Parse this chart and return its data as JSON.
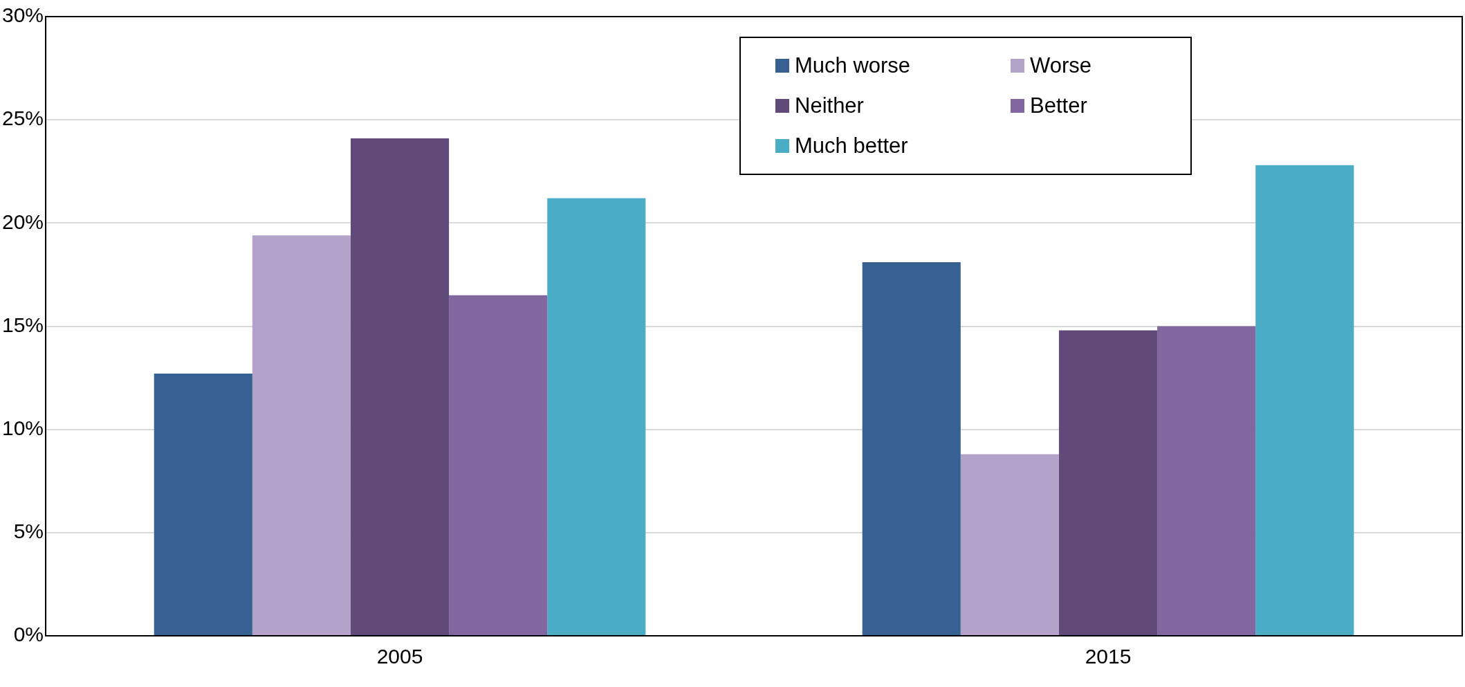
{
  "chart_data": {
    "type": "bar",
    "categories": [
      "2005",
      "2015"
    ],
    "series": [
      {
        "name": "Much worse",
        "color": "#376192",
        "values": [
          12.7,
          18.1
        ]
      },
      {
        "name": "Worse",
        "color": "#b3a3c8",
        "values": [
          19.4,
          8.8
        ]
      },
      {
        "name": "Neither",
        "color": "#5f4a7a",
        "values": [
          24.1,
          14.8
        ]
      },
      {
        "name": "Better",
        "color": "#8166a0",
        "values": [
          16.5,
          15.0
        ]
      },
      {
        "name": "Much better",
        "color": "#4bacc6",
        "values": [
          21.2,
          22.8
        ]
      }
    ],
    "ylim": [
      0,
      30
    ],
    "yticks": [
      {
        "value": 0,
        "label": "0%"
      },
      {
        "value": 5,
        "label": "5%"
      },
      {
        "value": 10,
        "label": "10%"
      },
      {
        "value": 15,
        "label": "15%"
      },
      {
        "value": 20,
        "label": "20%"
      },
      {
        "value": 25,
        "label": "25%"
      },
      {
        "value": 30,
        "label": "30%"
      }
    ],
    "grid": "y",
    "legend": "top right"
  }
}
